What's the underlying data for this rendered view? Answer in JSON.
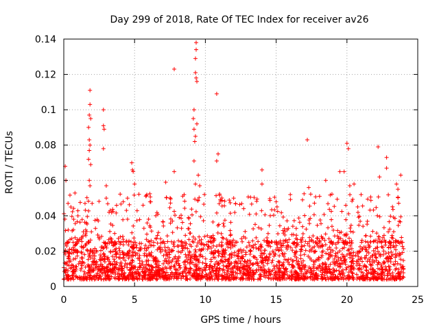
{
  "chart_data": {
    "type": "scatter",
    "title": "Day 299 of 2018, Rate Of TEC Index for receiver av26",
    "xlabel": "GPS time / hours",
    "ylabel": "ROTI / TECUs",
    "xlim": [
      0,
      25
    ],
    "ylim": [
      0,
      0.14
    ],
    "xticks": [
      0,
      5,
      10,
      15,
      20,
      25
    ],
    "xtick_labels": [
      "0",
      "5",
      "10",
      "15",
      "20",
      "25"
    ],
    "yticks": [
      0,
      0.02,
      0.04,
      0.06,
      0.08,
      0.1,
      0.12,
      0.14
    ],
    "ytick_labels": [
      "0",
      "0.02",
      "0.04",
      "0.06",
      "0.08",
      "0.1",
      "0.12",
      "0.14"
    ],
    "grid": true,
    "marker": "+",
    "marker_color": "#ff0000",
    "x_data_range": [
      0,
      24
    ],
    "baseline_band": [
      0.004,
      0.025
    ],
    "spikes": [
      {
        "x": 0.1,
        "y": 0.068
      },
      {
        "x": 0.15,
        "y": 0.06
      },
      {
        "x": 0.3,
        "y": 0.047
      },
      {
        "x": 0.5,
        "y": 0.045
      },
      {
        "x": 0.7,
        "y": 0.038
      },
      {
        "x": 1.0,
        "y": 0.04
      },
      {
        "x": 1.5,
        "y": 0.047
      },
      {
        "x": 1.85,
        "y": 0.111
      },
      {
        "x": 1.85,
        "y": 0.103
      },
      {
        "x": 1.8,
        "y": 0.097
      },
      {
        "x": 1.9,
        "y": 0.095
      },
      {
        "x": 1.75,
        "y": 0.09
      },
      {
        "x": 1.8,
        "y": 0.083
      },
      {
        "x": 1.85,
        "y": 0.08
      },
      {
        "x": 1.8,
        "y": 0.077
      },
      {
        "x": 1.75,
        "y": 0.072
      },
      {
        "x": 1.9,
        "y": 0.069
      },
      {
        "x": 1.8,
        "y": 0.06
      },
      {
        "x": 1.85,
        "y": 0.057
      },
      {
        "x": 2.0,
        "y": 0.047
      },
      {
        "x": 2.8,
        "y": 0.1
      },
      {
        "x": 2.8,
        "y": 0.091
      },
      {
        "x": 2.85,
        "y": 0.089
      },
      {
        "x": 2.8,
        "y": 0.078
      },
      {
        "x": 3.0,
        "y": 0.057
      },
      {
        "x": 3.0,
        "y": 0.05
      },
      {
        "x": 3.2,
        "y": 0.042
      },
      {
        "x": 4.2,
        "y": 0.048
      },
      {
        "x": 4.5,
        "y": 0.05
      },
      {
        "x": 4.8,
        "y": 0.07
      },
      {
        "x": 4.85,
        "y": 0.066
      },
      {
        "x": 4.9,
        "y": 0.065
      },
      {
        "x": 5.0,
        "y": 0.058
      },
      {
        "x": 5.6,
        "y": 0.046
      },
      {
        "x": 7.2,
        "y": 0.059
      },
      {
        "x": 7.8,
        "y": 0.123
      },
      {
        "x": 7.8,
        "y": 0.065
      },
      {
        "x": 8.5,
        "y": 0.052
      },
      {
        "x": 9.2,
        "y": 0.1
      },
      {
        "x": 9.15,
        "y": 0.095
      },
      {
        "x": 9.2,
        "y": 0.089
      },
      {
        "x": 9.3,
        "y": 0.085
      },
      {
        "x": 9.25,
        "y": 0.082
      },
      {
        "x": 9.2,
        "y": 0.071
      },
      {
        "x": 9.3,
        "y": 0.058
      },
      {
        "x": 9.35,
        "y": 0.138
      },
      {
        "x": 9.35,
        "y": 0.134
      },
      {
        "x": 9.3,
        "y": 0.129
      },
      {
        "x": 9.3,
        "y": 0.121
      },
      {
        "x": 9.35,
        "y": 0.118
      },
      {
        "x": 9.4,
        "y": 0.116
      },
      {
        "x": 9.4,
        "y": 0.092
      },
      {
        "x": 9.5,
        "y": 0.063
      },
      {
        "x": 9.6,
        "y": 0.057
      },
      {
        "x": 10.8,
        "y": 0.109
      },
      {
        "x": 10.9,
        "y": 0.075
      },
      {
        "x": 10.8,
        "y": 0.071
      },
      {
        "x": 12.0,
        "y": 0.05
      },
      {
        "x": 14.0,
        "y": 0.066
      },
      {
        "x": 14.0,
        "y": 0.058
      },
      {
        "x": 15.0,
        "y": 0.048
      },
      {
        "x": 16.0,
        "y": 0.052
      },
      {
        "x": 17.2,
        "y": 0.083
      },
      {
        "x": 17.3,
        "y": 0.056
      },
      {
        "x": 18.5,
        "y": 0.06
      },
      {
        "x": 19.5,
        "y": 0.065
      },
      {
        "x": 20.0,
        "y": 0.081
      },
      {
        "x": 20.1,
        "y": 0.078
      },
      {
        "x": 19.8,
        "y": 0.065
      },
      {
        "x": 20.2,
        "y": 0.057
      },
      {
        "x": 20.5,
        "y": 0.058
      },
      {
        "x": 21.0,
        "y": 0.052
      },
      {
        "x": 22.2,
        "y": 0.079
      },
      {
        "x": 22.8,
        "y": 0.073
      },
      {
        "x": 22.8,
        "y": 0.067
      },
      {
        "x": 22.3,
        "y": 0.062
      },
      {
        "x": 23.5,
        "y": 0.058
      },
      {
        "x": 23.8,
        "y": 0.063
      },
      {
        "x": 23.6,
        "y": 0.055
      }
    ]
  }
}
